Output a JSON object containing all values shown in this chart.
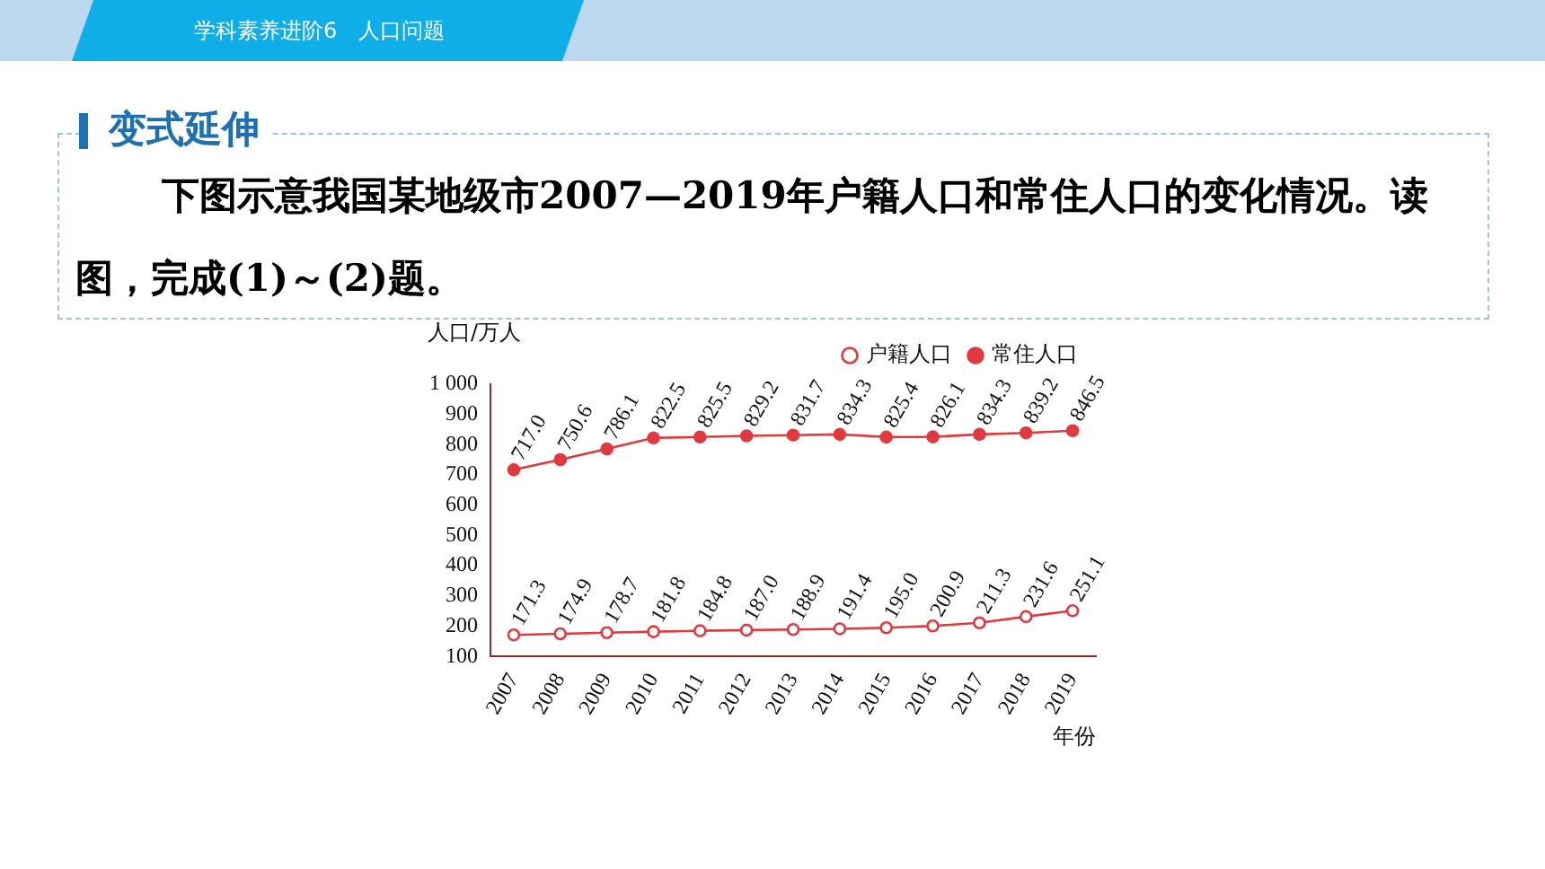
{
  "chart_data": {
    "type": "line",
    "title": "下图示意我国某地级市2007—2019年户籍人口和常住人口的变化情况。读图，完成(1)～(2)题。",
    "annotations": [
      "学科素养进阶6　人口问题",
      "变式延伸"
    ],
    "xlabel": "年份",
    "ylabel": "人口/万人",
    "categories": [
      "2007",
      "2008",
      "2009",
      "2010",
      "2011",
      "2012",
      "2013",
      "2014",
      "2015",
      "2016",
      "2017",
      "2018",
      "2019"
    ],
    "series": [
      {
        "name": "户籍人口",
        "color": "#e0393e",
        "values": [
          171.3,
          174.9,
          178.7,
          181.8,
          184.8,
          187.0,
          188.9,
          191.4,
          195.0,
          200.9,
          211.3,
          231.6,
          251.1
        ],
        "value_labels": [
          "171.3",
          "174.9",
          "178.7",
          "181.8",
          "184.8",
          "187.0",
          "188.9",
          "191.4",
          "195.0",
          "200.9",
          "211.3",
          "231.6",
          "251.1"
        ]
      },
      {
        "name": "常住人口",
        "color": "#e0393e",
        "values": [
          717.0,
          750.6,
          786.1,
          822.5,
          825.5,
          829.2,
          831.7,
          834.3,
          825.4,
          826.1,
          834.3,
          839.2,
          846.5
        ],
        "value_labels": [
          "717.0",
          "750.6",
          "786.1",
          "822.5",
          "825.5",
          "829.2",
          "831.7",
          "834.3",
          "825.4",
          "826.1",
          "834.3",
          "839.2",
          "846.5"
        ]
      }
    ],
    "ylim": [
      100,
      1000
    ],
    "yticks": [
      100,
      200,
      300,
      400,
      500,
      600,
      700,
      800,
      900,
      {
        "value": 1000,
        "label": "1 000"
      }
    ],
    "grid": false,
    "legend": "top",
    "marker": "circle",
    "line_style": "solid"
  }
}
